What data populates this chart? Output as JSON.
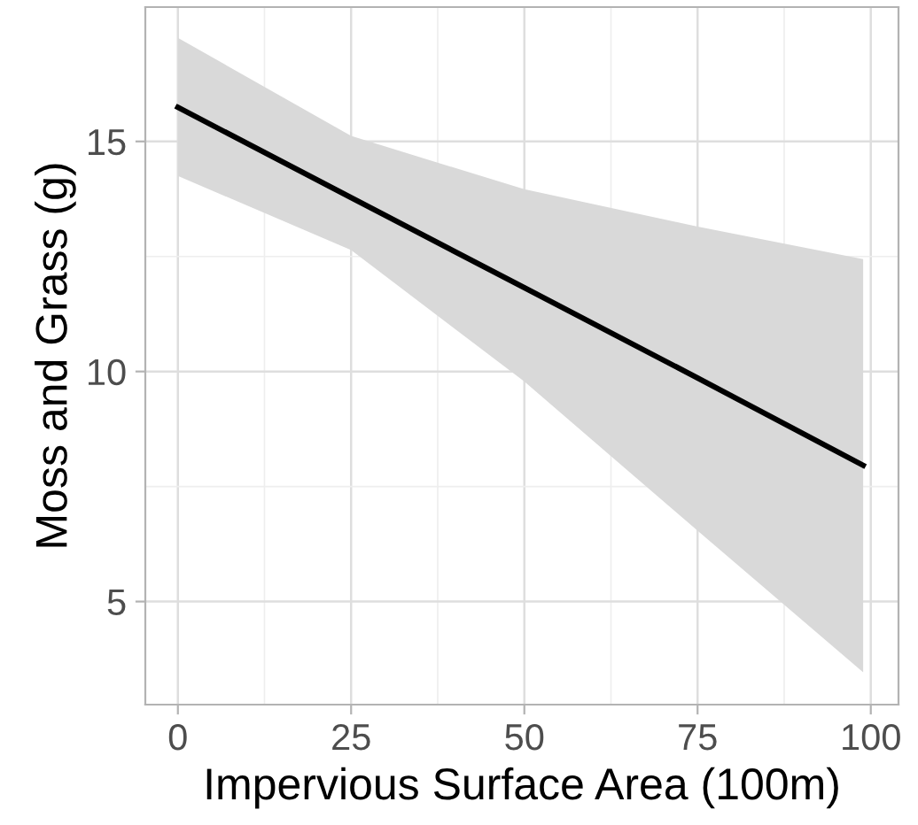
{
  "chart_data": {
    "type": "line",
    "xlabel": "Impervious Surface Area (100m)",
    "ylabel": "Moss and Grass (g)",
    "series": [
      {
        "color": "#000000",
        "x": [
          0,
          25,
          50,
          75,
          98.9
        ],
        "values": [
          15.74,
          13.78,
          11.82,
          9.86,
          7.96
        ],
        "lower": [
          14.25,
          12.64,
          9.78,
          6.54,
          3.46
        ],
        "upper": [
          17.25,
          15.12,
          13.96,
          13.15,
          12.44
        ]
      }
    ],
    "xlim": [
      -4.7,
      104
    ],
    "ylim": [
      2.76,
      17.92
    ],
    "xticks": [
      0,
      25,
      50,
      75,
      100
    ],
    "yticks": [
      5,
      10,
      15
    ],
    "grid": true,
    "legend": false,
    "marker": "none",
    "line_style": "solid"
  }
}
